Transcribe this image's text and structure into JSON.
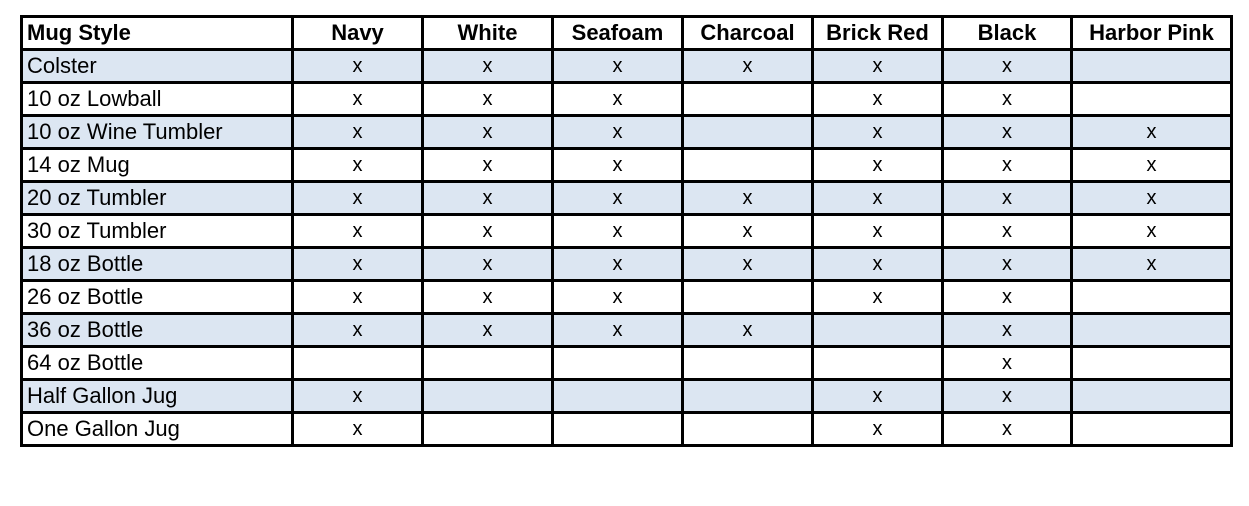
{
  "table": {
    "header": [
      "Mug Style",
      "Navy",
      "White",
      "Seafoam",
      "Charcoal",
      "Brick Red",
      "Black",
      "Harbor Pink"
    ],
    "rows": [
      [
        "Colster",
        "x",
        "x",
        "x",
        "x",
        "x",
        "x",
        null
      ],
      [
        "10 oz Lowball",
        "x",
        "x",
        "x",
        null,
        "x",
        "x",
        null
      ],
      [
        "10 oz Wine Tumbler",
        "x",
        "x",
        "x",
        null,
        "x",
        "x",
        "x"
      ],
      [
        "14 oz Mug",
        "x",
        "x",
        "x",
        null,
        "x",
        "x",
        "x"
      ],
      [
        "20 oz Tumbler",
        "x",
        "x",
        "x",
        "x",
        "x",
        "x",
        "x"
      ],
      [
        "30 oz Tumbler",
        "x",
        "x",
        "x",
        "x",
        "x",
        "x",
        "x"
      ],
      [
        "18 oz Bottle",
        "x",
        "x",
        "x",
        "x",
        "x",
        "x",
        "x"
      ],
      [
        "26 oz Bottle",
        "x",
        "x",
        "x",
        null,
        "x",
        "x",
        null
      ],
      [
        "36 oz Bottle",
        "x",
        "x",
        "x",
        "x",
        null,
        "x",
        null
      ],
      [
        "64 oz Bottle",
        null,
        null,
        null,
        null,
        null,
        "x",
        null
      ],
      [
        "Half Gallon Jug",
        "x",
        null,
        null,
        null,
        "x",
        "x",
        null
      ],
      [
        "One Gallon Jug",
        "x",
        null,
        null,
        null,
        "x",
        "x",
        null
      ]
    ]
  }
}
